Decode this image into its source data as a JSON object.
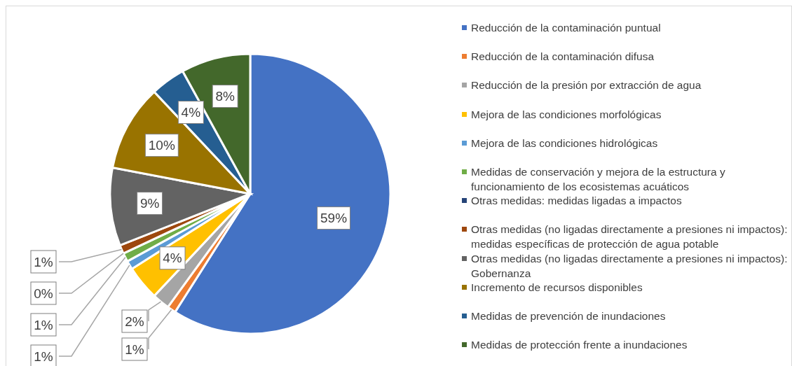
{
  "chart_data": {
    "type": "pie",
    "categories": [
      "Reducción de la contaminación puntual",
      "Reducción de la contaminación difusa",
      "Reducción de la presión por extracción de agua",
      "Mejora de las condiciones morfológicas",
      "Mejora de las condiciones hidrológicas",
      "Medidas de conservación y mejora de la estructura y funcionamiento de los ecosistemas acuáticos",
      "Otras medidas: medidas ligadas a impactos",
      "Otras medidas (no ligadas directamente a presiones ni impactos): medidas específicas de protección de agua potable",
      "Otras medidas (no ligadas directamente a presiones ni impactos): Gobernanza",
      "Incremento de recursos disponibles",
      "Medidas de prevención de inundaciones",
      "Medidas de protección frente a inundaciones"
    ],
    "values": [
      59,
      1,
      2,
      4,
      1,
      1,
      0,
      1,
      9,
      10,
      4,
      8
    ],
    "value_labels": [
      "59%",
      "1%",
      "2%",
      "4%",
      "1%",
      "1%",
      "0%",
      "1%",
      "9%",
      "10%",
      "4%",
      "8%"
    ],
    "colors": [
      "#4472c4",
      "#ed7d31",
      "#a5a5a5",
      "#ffc000",
      "#5b9bd5",
      "#70ad47",
      "#264478",
      "#9e480e",
      "#636363",
      "#997300",
      "#255e91",
      "#43682b"
    ],
    "legend": "right"
  }
}
